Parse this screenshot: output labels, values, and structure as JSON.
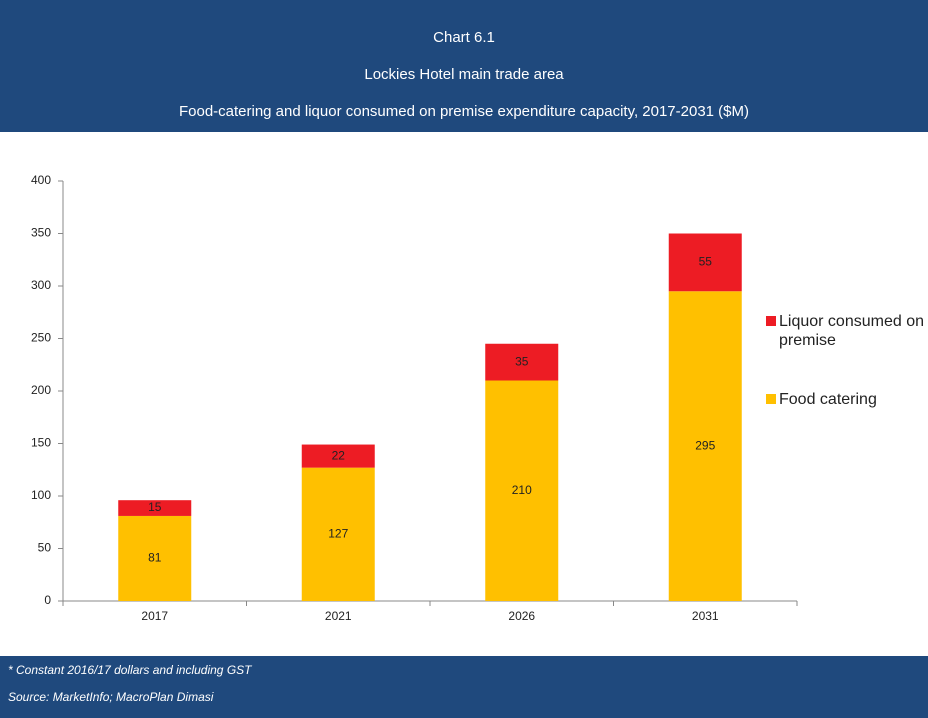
{
  "chart_data": {
    "type": "stacked-bar",
    "title": "Chart 6.1",
    "subtitle": [
      "Lockies Hotel main trade area",
      "Food-catering and liquor consumed on premise expenditure capacity, 2017-2031 ($M)"
    ],
    "categories": [
      "2017",
      "2021",
      "2026",
      "2031"
    ],
    "series": [
      {
        "name": "Food catering",
        "color": "#ffc000",
        "values": [
          81,
          127,
          210,
          295
        ]
      },
      {
        "name": "Liquor consumed on premise",
        "color": "#ed1c24",
        "values": [
          15,
          22,
          35,
          55
        ]
      }
    ],
    "ylim": [
      0,
      400
    ],
    "yticks": [
      0,
      50,
      100,
      150,
      200,
      250,
      300,
      350,
      400
    ],
    "legend": "right",
    "notes": [
      "* Constant 2016/17 dollars and including GST",
      "Source: MarketInfo; MacroPlan Dimasi"
    ]
  }
}
